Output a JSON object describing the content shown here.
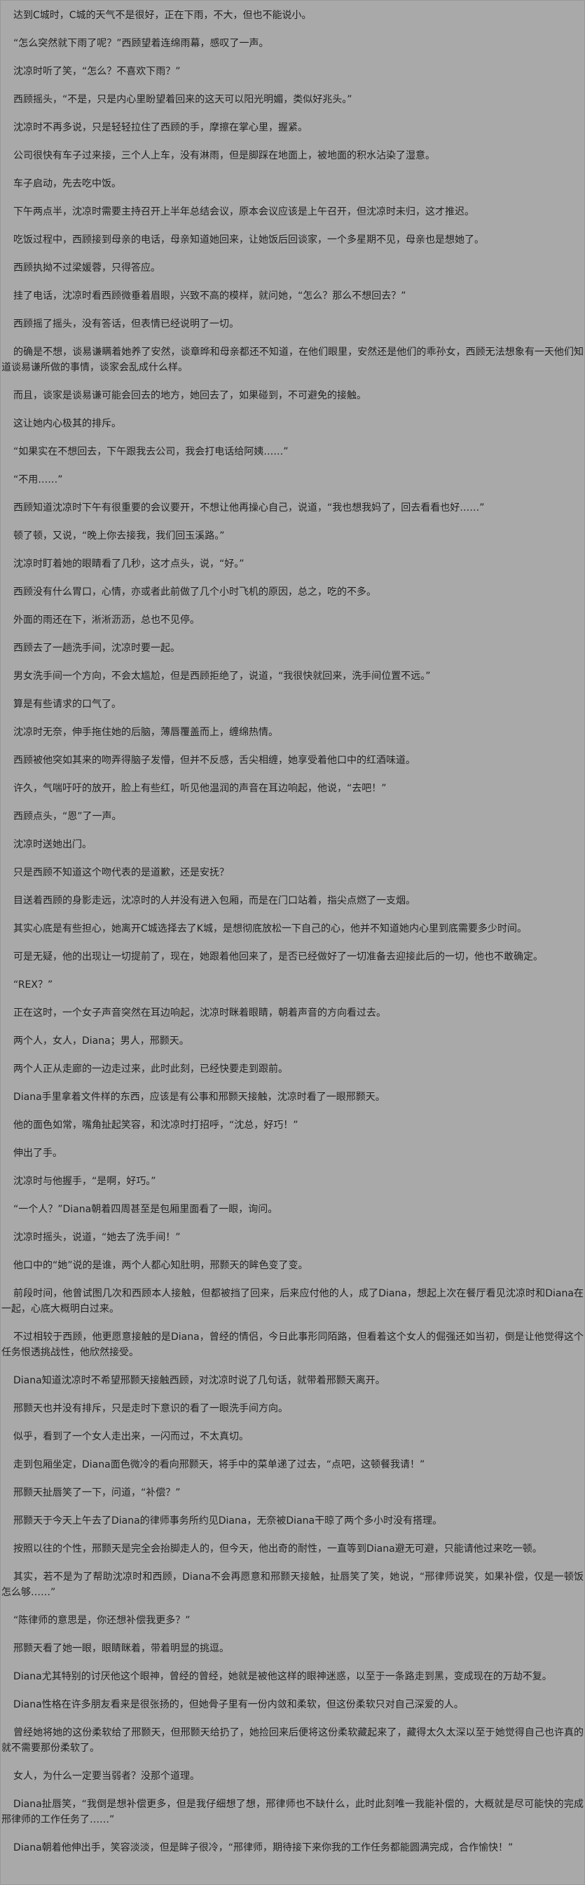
{
  "page": {
    "background_color": "#a9a9a9",
    "text_color": "#1f1f1f"
  },
  "content": {
    "paragraphs": [
      "达到C城时，C城的天气不是很好，正在下雨，不大，但也不能说小。",
      "“怎么突然就下雨了呢？”西顾望着连绵雨幕，感叹了一声。",
      "沈凉时听了笑，“怎么？不喜欢下雨？”",
      "西顾摇头，“不是，只是内心里盼望着回来的这天可以阳光明媚，类似好兆头。”",
      "沈凉时不再多说，只是轻轻拉住了西顾的手，摩擦在掌心里，握紧。",
      "公司很快有车子过来接，三个人上车，没有淋雨，但是脚踩在地面上，被地面的积水沾染了湿意。",
      "车子启动，先去吃中饭。",
      "下午两点半，沈凉时需要主持召开上半年总结会议，原本会议应该是上午召开，但沈凉时未归，这才推迟。",
      "吃饭过程中，西顾接到母亲的电话，母亲知道她回来，让她饭后回谈家，一个多星期不见，母亲也是想她了。",
      "西顾执拗不过梁媛蓉，只得答应。",
      "挂了电话，沈凉时看西顾微垂着眉眼，兴致不高的模样，就问她，“怎么？那么不想回去？”",
      "西顾摇了摇头，没有答话，但表情已经说明了一切。",
      "的确是不想，谈易谦瞒着她养了安然，谈章晔和母亲都还不知道，在他们眼里，安然还是他们的乖孙女，西顾无法想象有一天他们知道谈易谦所做的事情，谈家会乱成什么样。",
      "而且，谈家是谈易谦可能会回去的地方，她回去了，如果碰到，不可避免的接触。",
      "这让她内心极其的排斥。",
      "“如果实在不想回去，下午跟我去公司，我会打电话给阿姨……”",
      "“不用……”",
      "西顾知道沈凉时下午有很重要的会议要开，不想让他再操心自己，说道，“我也想我妈了，回去看看也好……”",
      "顿了顿，又说，“晚上你去接我，我们回玉溪路。”",
      "沈凉时盯着她的眼睛看了几秒，这才点头，说，“好。”",
      "西顾没有什么胃口，心情，亦或者此前做了几个小时飞机的原因，总之，吃的不多。",
      "外面的雨还在下，淅淅沥沥，总也不见停。",
      "西顾去了一趟洗手间，沈凉时要一起。",
      "男女洗手间一个方向，不会太尴尬，但是西顾拒绝了，说道，“我很快就回来，洗手间位置不远。”",
      "算是有些请求的口气了。",
      "沈凉时无奈，伸手拖住她的后脑，薄唇覆盖而上，缠绵热情。",
      "西顾被他突如其来的吻弄得脑子发懵，但并不反感，舌尖相缠，她享受着他口中的红酒味道。",
      "许久，气喘吁吁的放开，脸上有些红，听见他温润的声音在耳边响起，他说，“去吧！”",
      "西顾点头，“恩”了一声。",
      "沈凉时送她出门。",
      "只是西顾不知道这个吻代表的是道歉，还是安抚？",
      "目送着西顾的身影走远，沈凉时的人并没有进入包厢，而是在门口站着，指尖点燃了一支烟。",
      "其实心底是有些担心，她离开C城选择去了K城，是想彻底放松一下自己的心，他并不知道她内心里到底需要多少时间。",
      "可是无疑，他的出现让一切提前了，现在，她跟着他回来了，是否已经做好了一切准备去迎接此后的一切，他也不敢确定。",
      "“REX？”",
      "正在这时，一个女子声音突然在耳边响起，沈凉时眯着眼睛，朝着声音的方向看过去。",
      "两个人，女人，Diana；男人，邢颢天。",
      "两个人正从走廊的一边走过来，此时此刻，已经快要走到跟前。",
      "Diana手里拿着文件样的东西，应该是有公事和邢颢天接触，沈凉时看了一眼邢颢天。",
      "他的面色如常，嘴角扯起笑容，和沈凉时打招呼，“沈总，好巧！”",
      "伸出了手。",
      "沈凉时与他握手，“是啊，好巧。”",
      "“一个人？”Diana朝着四周甚至是包厢里面看了一眼，询问。",
      "沈凉时摇头，说道，“她去了洗手间！”",
      "他口中的“她”说的是谁，两个人都心知肚明，邢颢天的眸色变了变。",
      "前段时间，他曾试图几次和西顾本人接触，但都被挡了回来，后来应付他的人，成了Diana，想起上次在餐厅看见沈凉时和Diana在一起，心底大概明白过来。",
      "不过相较于西顾，他更愿意接触的是Diana，曾经的情侣，今日此事形同陌路，但看着这个女人的倔强还如当初，倒是让他觉得这个任务恨透挑战性，他欣然接受。",
      "Diana知道沈凉时不希望邢颢天接触西顾，对沈凉时说了几句话，就带着邢颢天离开。",
      "邢颢天也并没有排斥，只是走时下意识的看了一眼洗手间方向。",
      "似乎，看到了一个女人走出来，一闪而过，不太真切。",
      "走到包厢坐定，Diana面色微冷的看向邢颢天，将手中的菜单递了过去，“点吧，这顿餐我请！”",
      "邢颢天扯唇笑了一下，问道，“补偿？”",
      "邢颢天于今天上午去了Diana的律师事务所约见Diana，无奈被Diana干晾了两个多小时没有搭理。",
      "按照以往的个性，邢颢天是完全会抬脚走人的，但今天，他出奇的耐性，一直等到Diana避无可避，只能请他过来吃一顿。",
      "其实，若不是为了帮助沈凉时和西顾，Diana不会再愿意和邢颢天接触，扯唇笑了笑，她说，“邢律师说笑，如果补偿，仅是一顿饭怎么够……”",
      "“陈律师的意思是，你还想补偿我更多？”",
      "邢颢天看了她一眼，眼睛眯着，带着明显的挑逗。",
      "Diana尤其特别的讨厌他这个眼神，曾经的曾经，她就是被他这样的眼神迷惑，以至于一条路走到黑，变成现在的万劫不复。",
      "Diana性格在许多朋友看来是很张扬的，但她骨子里有一份内敛和柔软，但这份柔软只对自己深爱的人。",
      "曾经她将她的这份柔软给了邢颢天，但邢颢天给扔了，她捡回来后便将这份柔软藏起来了，藏得太久太深以至于她觉得自己也许真的就不需要那份柔软了。",
      "女人，为什么一定要当弱者？没那个道理。",
      "Diana扯唇笑，“我倒是想补偿更多，但是我仔细想了想，邢律师也不缺什么，此时此刻唯一我能补偿的，大概就是尽可能快的完成邢律师的工作任务了……”",
      "Diana朝着他伸出手，笑容淡淡，但是眸子很冷，“邢律师，期待接下来你我的工作任务都能圆满完成，合作愉快！”"
    ]
  }
}
